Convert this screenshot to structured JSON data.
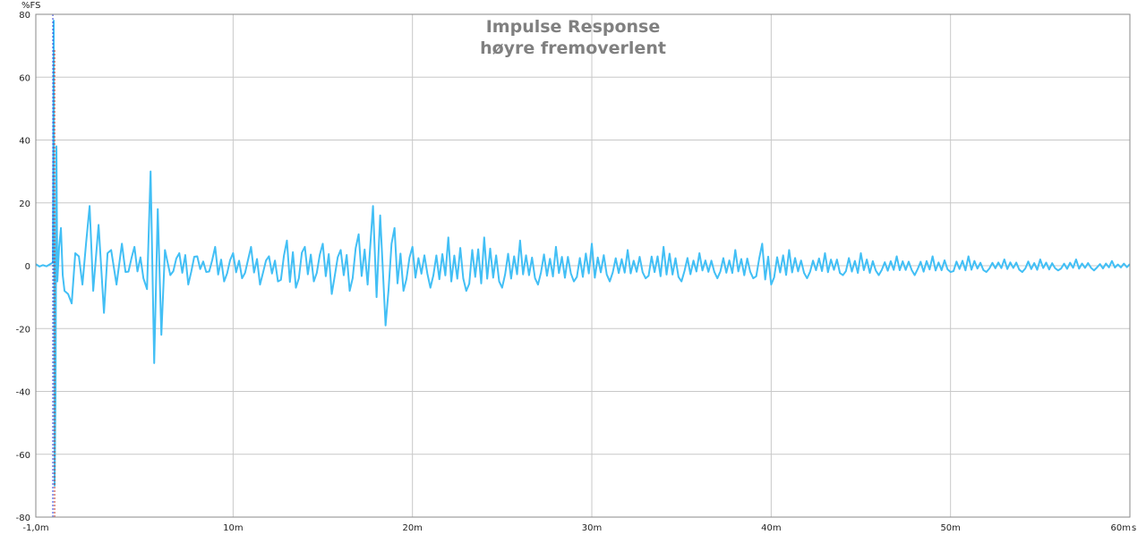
{
  "chart_data": {
    "type": "line",
    "title": "Impulse Response",
    "subtitle": "høyre fremoverlent",
    "ylabel": "%FS",
    "x_unit_label": "s",
    "xlim": [
      -1.0,
      60.0
    ],
    "ylim": [
      -80,
      80
    ],
    "x_ticks": [
      {
        "value": -1.0,
        "label": "-1,0m"
      },
      {
        "value": 10,
        "label": "10m"
      },
      {
        "value": 20,
        "label": "20m"
      },
      {
        "value": 30,
        "label": "30m"
      },
      {
        "value": 40,
        "label": "40m"
      },
      {
        "value": 50,
        "label": "50m"
      },
      {
        "value": 60,
        "label": "60m"
      }
    ],
    "y_ticks": [
      {
        "value": 80,
        "label": "80"
      },
      {
        "value": 60,
        "label": "60"
      },
      {
        "value": 40,
        "label": "40"
      },
      {
        "value": 20,
        "label": "20"
      },
      {
        "value": 0,
        "label": "0"
      },
      {
        "value": -20,
        "label": "-20"
      },
      {
        "value": -40,
        "label": "-40"
      },
      {
        "value": -60,
        "label": "-60"
      },
      {
        "value": -80,
        "label": "-80"
      }
    ],
    "grid": true,
    "marker_x": 0.0,
    "series": [
      {
        "color": "#42bff5",
        "x": [
          -1.0,
          -0.2,
          -0.05,
          0.0,
          0.05,
          0.1,
          0.15,
          0.2,
          0.3,
          0.4,
          0.5,
          0.6,
          0.8,
          1.0,
          1.2,
          1.4,
          1.6,
          1.8,
          2.0,
          2.2,
          2.5,
          2.8,
          3.0,
          3.2,
          3.5,
          3.8,
          4.0,
          4.5,
          5.0,
          5.4,
          5.6,
          5.8,
          6.0,
          6.2,
          6.5,
          7.0,
          7.5,
          8.0,
          8.5,
          9.0,
          9.5,
          10.0,
          10.5,
          11.0,
          11.5,
          12.0,
          12.5,
          13.0,
          13.5,
          14.0,
          14.5,
          15.0,
          15.5,
          16.0,
          16.5,
          17.0,
          17.5,
          17.8,
          18.0,
          18.2,
          18.5,
          19.0,
          19.5,
          20.0,
          21.0,
          22.0,
          23.0,
          24.0,
          25.0,
          26.0,
          27.0,
          28.0,
          29.0,
          30.0,
          31.0,
          32.0,
          33.0,
          34.0,
          35.0,
          36.0,
          37.0,
          38.0,
          39.0,
          39.5,
          40.0,
          41.0,
          42.0,
          43.0,
          44.0,
          45.0,
          46.0,
          47.0,
          48.0,
          49.0,
          50.0,
          51.0,
          52.0,
          53.0,
          54.0,
          55.0,
          56.0,
          57.0,
          58.0,
          59.0,
          60.0
        ],
        "y": [
          0.5,
          0.5,
          1,
          78,
          -70,
          -40,
          38,
          -5,
          6,
          12,
          -3,
          -8,
          -9,
          -12,
          4,
          3,
          -6,
          7,
          19,
          -8,
          13,
          -15,
          4,
          5,
          -6,
          7,
          -2,
          6,
          -4,
          30,
          -31,
          18,
          -22,
          5,
          -3,
          4,
          -6,
          3,
          -2,
          6,
          -5,
          4,
          -4,
          6,
          -6,
          3,
          -5,
          8,
          -7,
          6,
          -5,
          7,
          -9,
          5,
          -8,
          10,
          -6,
          19,
          -10,
          16,
          -19,
          12,
          -8,
          6,
          -7,
          9,
          -8,
          9,
          -7,
          8,
          -6,
          6,
          -5,
          7,
          -5,
          5,
          -4,
          6,
          -5,
          4,
          -4,
          5,
          -4,
          7,
          -6,
          5,
          -4,
          4,
          -3,
          4,
          -3,
          3,
          -3,
          3,
          -2,
          3,
          -2,
          2,
          -2,
          2,
          -1.5,
          2,
          -1.5,
          1.5,
          0.5
        ]
      }
    ]
  }
}
